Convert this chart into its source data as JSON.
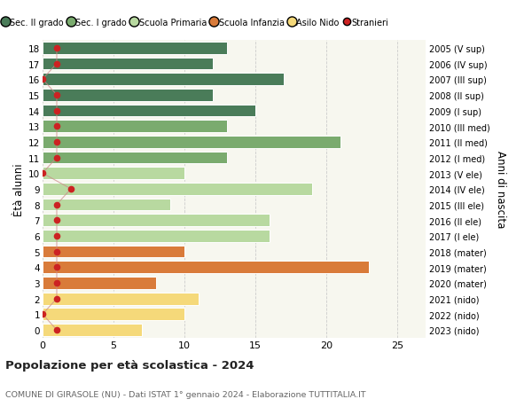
{
  "ages": [
    18,
    17,
    16,
    15,
    14,
    13,
    12,
    11,
    10,
    9,
    8,
    7,
    6,
    5,
    4,
    3,
    2,
    1,
    0
  ],
  "values": [
    13,
    12,
    17,
    12,
    15,
    13,
    21,
    13,
    10,
    19,
    9,
    16,
    16,
    10,
    23,
    8,
    11,
    10,
    7
  ],
  "stranieri": [
    1,
    1,
    0,
    1,
    1,
    1,
    1,
    1,
    0,
    2,
    1,
    1,
    1,
    1,
    1,
    1,
    1,
    0,
    1
  ],
  "right_labels": [
    "2005 (V sup)",
    "2006 (IV sup)",
    "2007 (III sup)",
    "2008 (II sup)",
    "2009 (I sup)",
    "2010 (III med)",
    "2011 (II med)",
    "2012 (I med)",
    "2013 (V ele)",
    "2014 (IV ele)",
    "2015 (III ele)",
    "2016 (II ele)",
    "2017 (I ele)",
    "2018 (mater)",
    "2019 (mater)",
    "2020 (mater)",
    "2021 (nido)",
    "2022 (nido)",
    "2023 (nido)"
  ],
  "bar_colors": [
    "#4a7c59",
    "#4a7c59",
    "#4a7c59",
    "#4a7c59",
    "#4a7c59",
    "#7aab6e",
    "#7aab6e",
    "#7aab6e",
    "#b8d9a0",
    "#b8d9a0",
    "#b8d9a0",
    "#b8d9a0",
    "#b8d9a0",
    "#d97b3a",
    "#d97b3a",
    "#d97b3a",
    "#f5d97a",
    "#f5d97a",
    "#f5d97a"
  ],
  "legend_colors": [
    "#4a7c59",
    "#7aab6e",
    "#b8d9a0",
    "#d97b3a",
    "#f5d97a"
  ],
  "legend_labels": [
    "Sec. II grado",
    "Sec. I grado",
    "Scuola Primaria",
    "Scuola Infanzia",
    "Asilo Nido",
    "Stranieri"
  ],
  "ylabel_left": "Ètà alunni",
  "ylabel_right": "Anni di nascita",
  "title": "Popolazione per età scolastica - 2024",
  "subtitle": "COMUNE DI GIRASOLE (NU) - Dati ISTAT 1° gennaio 2024 - Elaborazione TUTTITALIA.IT",
  "xlim": [
    0,
    27
  ],
  "background_color": "#ffffff",
  "plot_bg_color": "#f7f7ef",
  "grid_color": "#cccccc",
  "bar_edge_color": "#ffffff",
  "stranieri_color": "#cc2222",
  "stranieri_line_color": "#cc8888",
  "stranieri_size": 5.5
}
